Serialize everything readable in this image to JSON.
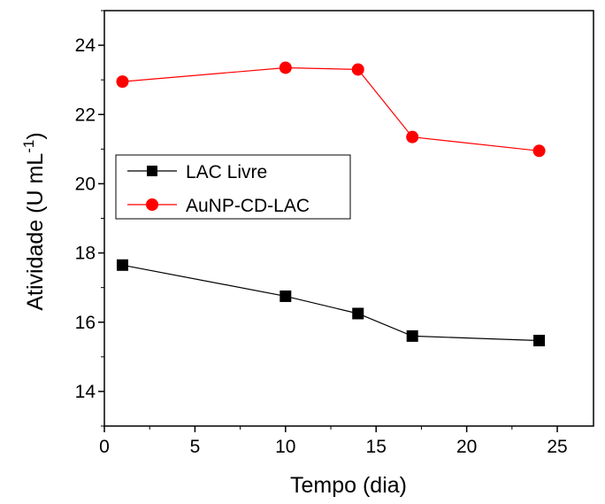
{
  "chart_data": {
    "type": "line",
    "xlabel": "Tempo (dia)",
    "ylabel": {
      "main": "Atividade (U mL",
      "superscript": "-1",
      "close": ")"
    },
    "xlim": [
      0,
      27
    ],
    "ylim": [
      13,
      25
    ],
    "xticks": [
      0,
      5,
      10,
      15,
      20,
      25
    ],
    "yticks": [
      14,
      16,
      18,
      20,
      22,
      24
    ],
    "xtick_labels": [
      "0",
      "5",
      "10",
      "15",
      "20",
      "25"
    ],
    "ytick_labels": [
      "14",
      "16",
      "18",
      "20",
      "22",
      "24"
    ],
    "grid": false,
    "legend_position": "left",
    "series": [
      {
        "name": "LAC Livre",
        "marker": "square",
        "color": "#000000",
        "x": [
          1,
          10,
          14,
          17,
          24
        ],
        "y": [
          17.65,
          16.75,
          16.25,
          15.6,
          15.47
        ]
      },
      {
        "name": "AuNP-CD-LAC",
        "marker": "circle",
        "color": "#ff0000",
        "x": [
          1,
          10,
          14,
          17,
          24
        ],
        "y": [
          22.95,
          23.35,
          23.3,
          21.35,
          20.95
        ]
      }
    ]
  }
}
